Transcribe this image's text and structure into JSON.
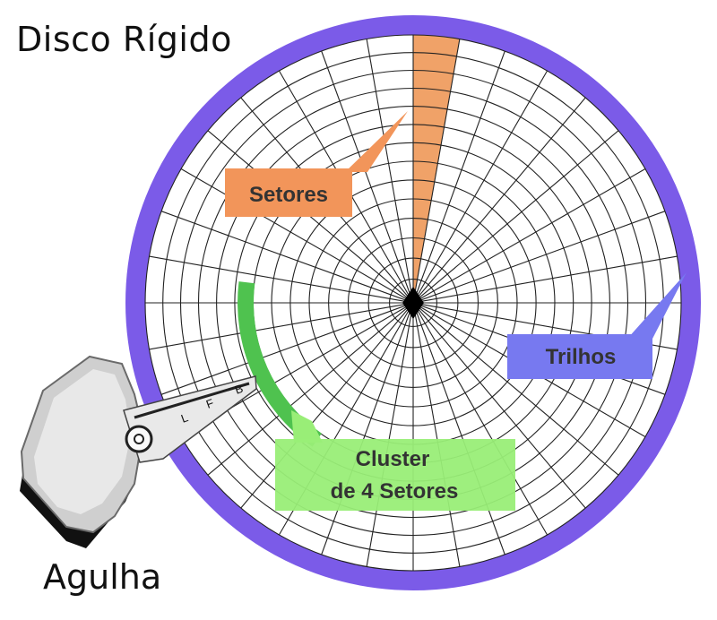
{
  "title": "Disco Rígido",
  "needle_label": "Agulha",
  "callouts": {
    "sectors": "Setores",
    "tracks": "Trilhos",
    "cluster_line1": "Cluster",
    "cluster_line2": "de 4 Setores"
  },
  "colors": {
    "platter_rim": "#7b5be8",
    "grid_lines": "#222222",
    "sector_highlight": "#f0a268",
    "sectors_callout": "#f2955a",
    "tracks_callout": "#7779f0",
    "cluster_highlight": "#4fc24f",
    "cluster_callout": "#99ee77"
  },
  "head_markings": [
    "B",
    "F",
    "L"
  ]
}
